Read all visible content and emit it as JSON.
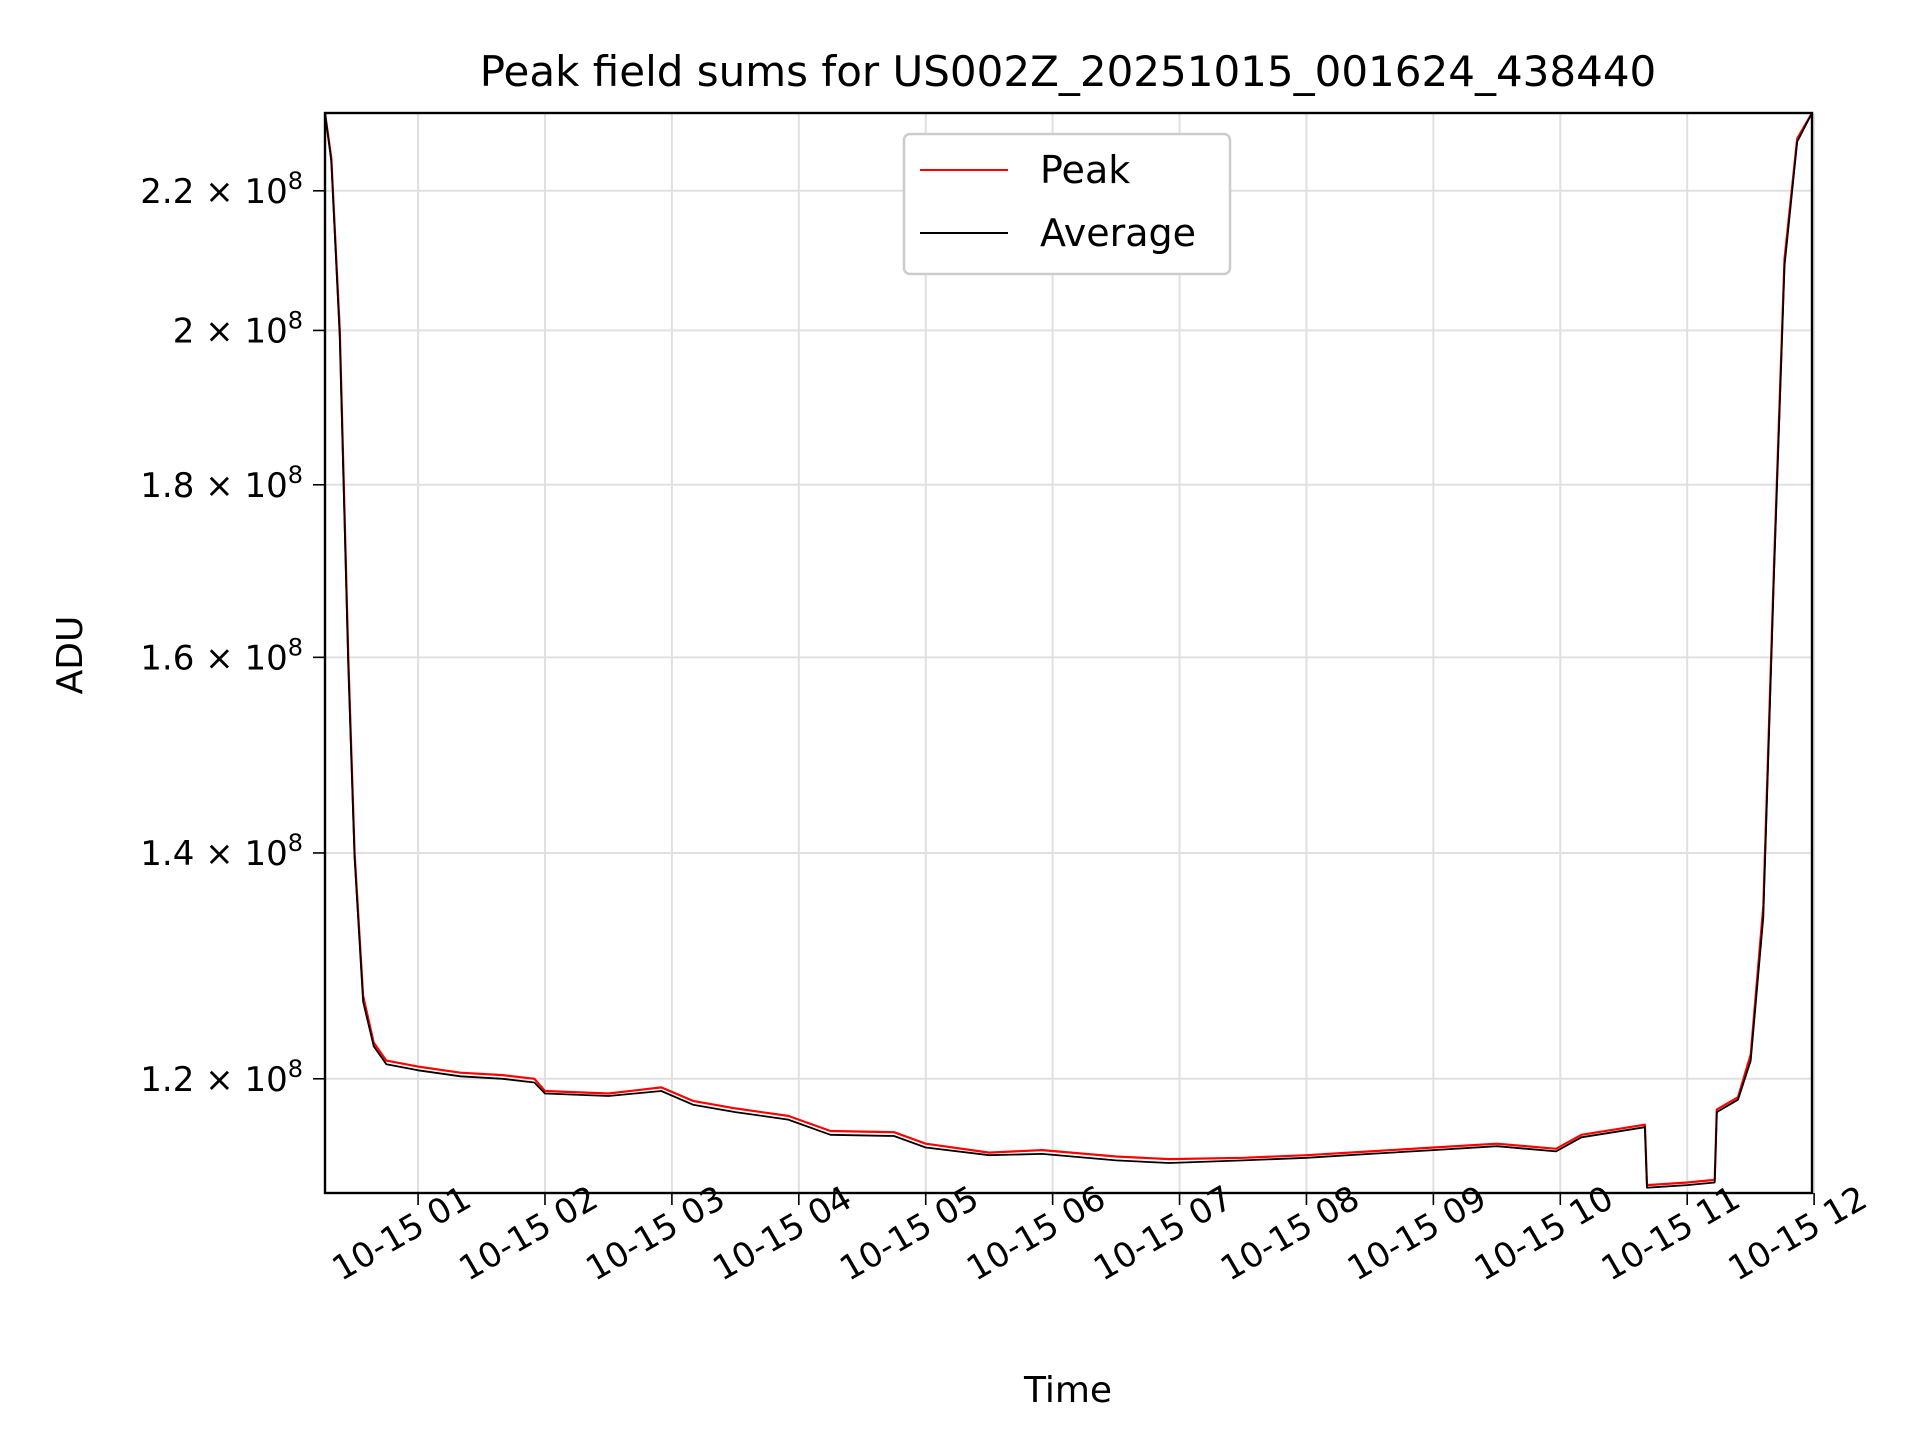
{
  "chart_data": {
    "type": "line",
    "title": "Peak field sums for US002Z_20251015_001624_438440",
    "xlabel": "Time",
    "ylabel": "ADU",
    "x_axis": "time",
    "y_scale": "log",
    "grid": true,
    "legend_position": "top-center",
    "xlim": [
      "2025-10-15T00:16",
      "2025-10-15T11:59"
    ],
    "ylim": [
      111000000,
      232000000
    ],
    "x_ticks": [
      {
        "value": "2025-10-15T01:00",
        "label": "10-15 01"
      },
      {
        "value": "2025-10-15T02:00",
        "label": "10-15 02"
      },
      {
        "value": "2025-10-15T03:00",
        "label": "10-15 03"
      },
      {
        "value": "2025-10-15T04:00",
        "label": "10-15 04"
      },
      {
        "value": "2025-10-15T05:00",
        "label": "10-15 05"
      },
      {
        "value": "2025-10-15T06:00",
        "label": "10-15 06"
      },
      {
        "value": "2025-10-15T07:00",
        "label": "10-15 07"
      },
      {
        "value": "2025-10-15T08:00",
        "label": "10-15 08"
      },
      {
        "value": "2025-10-15T09:00",
        "label": "10-15 09"
      },
      {
        "value": "2025-10-15T10:00",
        "label": "10-15 10"
      },
      {
        "value": "2025-10-15T11:00",
        "label": "10-15 11"
      },
      {
        "value": "2025-10-15T12:00",
        "label": "10-15 12"
      }
    ],
    "y_ticks": [
      {
        "value": 120000000,
        "mantissa": "1.2",
        "base": "10",
        "exp": "8"
      },
      {
        "value": 140000000,
        "mantissa": "1.4",
        "base": "10",
        "exp": "8"
      },
      {
        "value": 160000000,
        "mantissa": "1.6",
        "base": "10",
        "exp": "8"
      },
      {
        "value": 180000000,
        "mantissa": "1.8",
        "base": "10",
        "exp": "8"
      },
      {
        "value": 200000000,
        "mantissa": "2",
        "base": "10",
        "exp": "8"
      },
      {
        "value": 220000000,
        "mantissa": "2.2",
        "base": "10",
        "exp": "8"
      }
    ],
    "series": [
      {
        "name": "Peak",
        "color": "#ff0000",
        "points": [
          [
            "2025-10-15T00:16",
            232000000
          ],
          [
            "2025-10-15T00:19",
            225000000
          ],
          [
            "2025-10-15T00:23",
            200000000
          ],
          [
            "2025-10-15T00:27",
            160000000
          ],
          [
            "2025-10-15T00:30",
            140000000
          ],
          [
            "2025-10-15T00:34",
            127000000
          ],
          [
            "2025-10-15T00:39",
            123000000
          ],
          [
            "2025-10-15T00:45",
            121500000
          ],
          [
            "2025-10-15T01:00",
            121000000
          ],
          [
            "2025-10-15T01:20",
            120500000
          ],
          [
            "2025-10-15T01:40",
            120300000
          ],
          [
            "2025-10-15T01:55",
            120000000
          ],
          [
            "2025-10-15T02:00",
            119000000
          ],
          [
            "2025-10-15T02:30",
            118800000
          ],
          [
            "2025-10-15T02:55",
            119300000
          ],
          [
            "2025-10-15T03:10",
            118200000
          ],
          [
            "2025-10-15T03:30",
            117600000
          ],
          [
            "2025-10-15T03:55",
            117000000
          ],
          [
            "2025-10-15T04:15",
            115800000
          ],
          [
            "2025-10-15T04:45",
            115700000
          ],
          [
            "2025-10-15T05:00",
            114800000
          ],
          [
            "2025-10-15T05:30",
            114100000
          ],
          [
            "2025-10-15T05:55",
            114300000
          ],
          [
            "2025-10-15T06:30",
            113800000
          ],
          [
            "2025-10-15T06:55",
            113600000
          ],
          [
            "2025-10-15T07:30",
            113700000
          ],
          [
            "2025-10-15T08:00",
            113900000
          ],
          [
            "2025-10-15T08:30",
            114200000
          ],
          [
            "2025-10-15T09:00",
            114500000
          ],
          [
            "2025-10-15T09:30",
            114800000
          ],
          [
            "2025-10-15T09:58",
            114400000
          ],
          [
            "2025-10-15T10:10",
            115500000
          ],
          [
            "2025-10-15T10:40",
            116300000
          ],
          [
            "2025-10-15T10:41",
            111600000
          ],
          [
            "2025-10-15T11:00",
            111800000
          ],
          [
            "2025-10-15T11:13",
            112000000
          ],
          [
            "2025-10-15T11:14",
            117500000
          ],
          [
            "2025-10-15T11:24",
            118500000
          ],
          [
            "2025-10-15T11:30",
            122000000
          ],
          [
            "2025-10-15T11:36",
            135000000
          ],
          [
            "2025-10-15T11:41",
            170000000
          ],
          [
            "2025-10-15T11:46",
            210000000
          ],
          [
            "2025-10-15T11:52",
            228000000
          ],
          [
            "2025-10-15T11:59",
            232000000
          ]
        ]
      },
      {
        "name": "Average",
        "color": "#000000",
        "points": [
          [
            "2025-10-15T00:16",
            232000000
          ],
          [
            "2025-10-15T00:19",
            224500000
          ],
          [
            "2025-10-15T00:23",
            199000000
          ],
          [
            "2025-10-15T00:27",
            159000000
          ],
          [
            "2025-10-15T00:30",
            139500000
          ],
          [
            "2025-10-15T00:34",
            126500000
          ],
          [
            "2025-10-15T00:39",
            122700000
          ],
          [
            "2025-10-15T00:45",
            121200000
          ],
          [
            "2025-10-15T01:00",
            120700000
          ],
          [
            "2025-10-15T01:20",
            120200000
          ],
          [
            "2025-10-15T01:40",
            120000000
          ],
          [
            "2025-10-15T01:55",
            119700000
          ],
          [
            "2025-10-15T02:00",
            118800000
          ],
          [
            "2025-10-15T02:30",
            118600000
          ],
          [
            "2025-10-15T02:55",
            119000000
          ],
          [
            "2025-10-15T03:10",
            117900000
          ],
          [
            "2025-10-15T03:30",
            117300000
          ],
          [
            "2025-10-15T03:55",
            116700000
          ],
          [
            "2025-10-15T04:15",
            115500000
          ],
          [
            "2025-10-15T04:45",
            115400000
          ],
          [
            "2025-10-15T05:00",
            114500000
          ],
          [
            "2025-10-15T05:30",
            113900000
          ],
          [
            "2025-10-15T05:55",
            114000000
          ],
          [
            "2025-10-15T06:30",
            113500000
          ],
          [
            "2025-10-15T06:55",
            113300000
          ],
          [
            "2025-10-15T07:30",
            113500000
          ],
          [
            "2025-10-15T08:00",
            113700000
          ],
          [
            "2025-10-15T08:30",
            114000000
          ],
          [
            "2025-10-15T09:00",
            114300000
          ],
          [
            "2025-10-15T09:30",
            114600000
          ],
          [
            "2025-10-15T09:58",
            114200000
          ],
          [
            "2025-10-15T10:10",
            115300000
          ],
          [
            "2025-10-15T10:40",
            116100000
          ],
          [
            "2025-10-15T10:41",
            111400000
          ],
          [
            "2025-10-15T11:00",
            111600000
          ],
          [
            "2025-10-15T11:13",
            111800000
          ],
          [
            "2025-10-15T11:14",
            117300000
          ],
          [
            "2025-10-15T11:24",
            118300000
          ],
          [
            "2025-10-15T11:30",
            121500000
          ],
          [
            "2025-10-15T11:36",
            134000000
          ],
          [
            "2025-10-15T11:41",
            169000000
          ],
          [
            "2025-10-15T11:46",
            209000000
          ],
          [
            "2025-10-15T11:52",
            227500000
          ],
          [
            "2025-10-15T11:59",
            232000000
          ]
        ]
      }
    ]
  }
}
